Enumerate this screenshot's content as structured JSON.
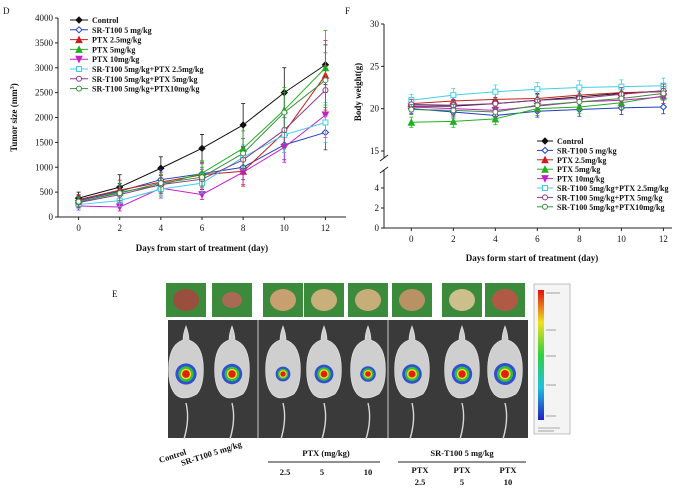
{
  "panel_labels": {
    "d": "D",
    "f": "F",
    "e": "E"
  },
  "chart_data": [
    {
      "type": "line",
      "panel": "D",
      "xlabel": "Days from start of treatment (day)",
      "ylabel": "Tumor size (mm",
      "ylabel_sup": "3",
      "ylabel_close": ")",
      "xlim": [
        -1,
        13
      ],
      "ylim": [
        0,
        4000
      ],
      "x": [
        0,
        2,
        4,
        6,
        8,
        10,
        12
      ],
      "xticks": [
        "0",
        "2",
        "4",
        "6",
        "8",
        "10",
        "12"
      ],
      "yticks": [
        "0",
        "500",
        "1000",
        "1500",
        "2000",
        "2500",
        "3000",
        "3500",
        "4000"
      ],
      "series": [
        {
          "name": "Control",
          "color": "#111111",
          "marker": "filled-diamond",
          "values": [
            380,
            600,
            980,
            1380,
            1850,
            2500,
            3060
          ],
          "err": [
            120,
            250,
            230,
            280,
            430,
            500,
            400
          ]
        },
        {
          "name": "SR-T100 5 mg/kg",
          "color": "#1f3fbf",
          "marker": "open-diamond",
          "values": [
            330,
            520,
            750,
            870,
            1000,
            1450,
            1700
          ],
          "err": [
            100,
            150,
            200,
            200,
            250,
            300,
            350
          ]
        },
        {
          "name": "PTX 2.5mg/kg",
          "color": "#c81e1e",
          "marker": "filled-triangle",
          "values": [
            350,
            540,
            700,
            850,
            920,
            1700,
            2850
          ],
          "err": [
            100,
            200,
            200,
            250,
            300,
            400,
            700
          ]
        },
        {
          "name": "PTX 5mg/kg",
          "color": "#1fb31f",
          "marker": "filled-triangle",
          "values": [
            300,
            500,
            640,
            880,
            1380,
            2150,
            3000
          ],
          "err": [
            100,
            180,
            200,
            250,
            350,
            450,
            750
          ]
        },
        {
          "name": "PTX 10mg/kg",
          "color": "#c81ec8",
          "marker": "filled-triangle-down",
          "values": [
            220,
            200,
            580,
            450,
            900,
            1400,
            2050
          ],
          "err": [
            80,
            80,
            200,
            100,
            250,
            300,
            450
          ]
        },
        {
          "name": "SR-T100 5mg/kg+PTX 2.5mg/kg",
          "color": "#3fd0e8",
          "marker": "open-square",
          "values": [
            250,
            330,
            560,
            680,
            1200,
            1650,
            1900
          ],
          "err": [
            80,
            120,
            150,
            200,
            250,
            350,
            400
          ]
        },
        {
          "name": "SR-T100 5mg/kg+PTX 5mg/kg",
          "color": "#8a3a8a",
          "marker": "open-circle",
          "values": [
            290,
            450,
            650,
            760,
            1150,
            1750,
            2550
          ],
          "err": [
            100,
            150,
            180,
            200,
            250,
            350,
            500
          ]
        },
        {
          "name": "SR-T100 5mg/kg+PTX10mg/kg",
          "color": "#3e8e3e",
          "marker": "open-circle",
          "values": [
            310,
            480,
            680,
            800,
            1280,
            2100,
            2750
          ],
          "err": [
            100,
            150,
            180,
            200,
            300,
            400,
            550
          ]
        }
      ]
    },
    {
      "type": "line",
      "panel": "F",
      "xlabel": "Days form start of treatment (day)",
      "ylabel": "Body weight(g)",
      "broken_y_axis": true,
      "x": [
        0,
        2,
        4,
        6,
        8,
        10,
        12
      ],
      "xticks": [
        "0",
        "2",
        "4",
        "6",
        "8",
        "10",
        "12"
      ],
      "ylim_upper": [
        15,
        30
      ],
      "yticks_upper": [
        "15",
        "20",
        "25",
        "30"
      ],
      "ylim_lower": [
        0,
        5
      ],
      "yticks_lower": [
        "0",
        "2",
        "4"
      ],
      "series": [
        {
          "name": "Control",
          "color": "#111111",
          "marker": "filled-diamond",
          "values": [
            20.3,
            20.3,
            20.6,
            21.0,
            21.4,
            21.8,
            22.1
          ],
          "err": [
            0.6,
            0.7,
            0.7,
            0.8,
            0.8,
            0.8,
            0.9
          ]
        },
        {
          "name": "SR-T100 5 mg/kg",
          "color": "#1f3fbf",
          "marker": "open-diamond",
          "values": [
            20.0,
            19.6,
            19.2,
            19.7,
            19.9,
            20.1,
            20.2
          ],
          "err": [
            0.6,
            0.7,
            0.7,
            0.7,
            0.8,
            0.8,
            0.8
          ]
        },
        {
          "name": "PTX 2.5mg/kg",
          "color": "#c81e1e",
          "marker": "filled-triangle",
          "values": [
            20.6,
            20.9,
            21.1,
            21.2,
            21.6,
            21.9,
            22.0
          ],
          "err": [
            0.7,
            0.9,
            0.9,
            0.9,
            0.9,
            0.8,
            0.8
          ]
        },
        {
          "name": "PTX 5mg/kg",
          "color": "#1fb31f",
          "marker": "filled-triangle",
          "values": [
            18.4,
            18.5,
            18.8,
            20.0,
            20.2,
            20.7,
            21.5
          ],
          "err": [
            0.6,
            0.7,
            0.7,
            0.8,
            0.8,
            0.8,
            0.9
          ]
        },
        {
          "name": "PTX 10mg/kg",
          "color": "#c81ec8",
          "marker": "filled-triangle-down",
          "values": [
            20.2,
            20.0,
            19.8,
            20.3,
            20.8,
            21.0,
            21.4
          ],
          "err": [
            0.6,
            0.7,
            0.7,
            0.7,
            0.8,
            0.8,
            0.8
          ]
        },
        {
          "name": "SR-T100 5mg/kg+PTX 2.5mg/kg",
          "color": "#3fd0e8",
          "marker": "open-square",
          "values": [
            21.0,
            21.6,
            22.0,
            22.3,
            22.5,
            22.6,
            22.7
          ],
          "err": [
            0.7,
            0.8,
            0.8,
            0.8,
            0.8,
            0.8,
            0.9
          ]
        },
        {
          "name": "SR-T100 5mg/kg+PTX 5mg/kg",
          "color": "#8a3a8a",
          "marker": "open-circle",
          "values": [
            20.5,
            20.4,
            20.6,
            21.0,
            21.2,
            21.7,
            22.1
          ],
          "err": [
            0.6,
            0.7,
            0.7,
            0.7,
            0.8,
            0.8,
            0.8
          ]
        },
        {
          "name": "SR-T100 5mg/kg+PTX10mg/kg",
          "color": "#3e8e3e",
          "marker": "open-circle",
          "values": [
            19.9,
            19.8,
            19.6,
            20.4,
            20.8,
            21.2,
            21.8
          ],
          "err": [
            0.6,
            0.7,
            0.7,
            0.7,
            0.8,
            0.8,
            0.8
          ]
        }
      ]
    }
  ],
  "imaging": {
    "group_labels": {
      "control": "Control",
      "sr_t100": "SR-T100 5 mg/kg",
      "ptx_header": "PTX (mg/kg)",
      "ptx_doses": [
        "2.5",
        "5",
        "10"
      ],
      "combo_header": "SR-T100 5 mg/kg",
      "combo_prefix": "PTX",
      "combo_doses": [
        "2.5",
        "5",
        "10"
      ]
    },
    "tumor_colors": [
      "#9a4e3e",
      "#a86a55",
      "#c8a070",
      "#c9b07a",
      "#c6ad7a",
      "#b89264",
      "#cdbf8c",
      "#b05a45"
    ],
    "signal_intensity": [
      0.95,
      0.9,
      0.55,
      0.8,
      0.6,
      0.85,
      0.9,
      1.0
    ]
  }
}
